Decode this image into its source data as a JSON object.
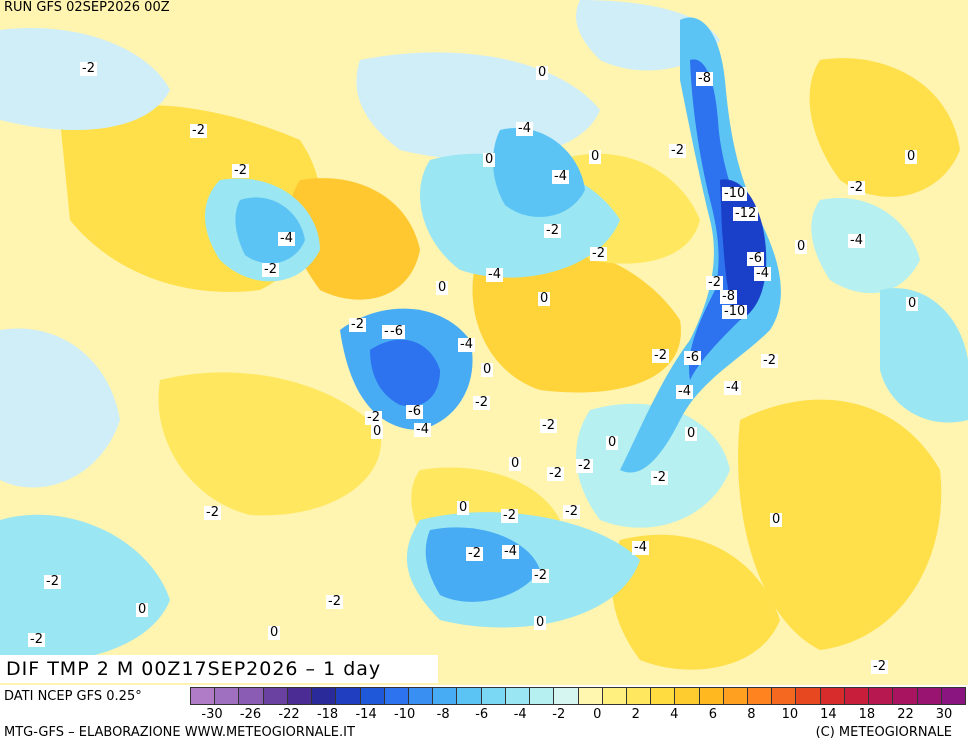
{
  "header": {
    "run": "RUN GFS 02SEP2026 00Z"
  },
  "map": {
    "field_title": "DIF TMP 2 M 00Z17SEP2026 – 1 day",
    "contour_labels": [
      "0",
      "-2",
      "-4",
      "-6",
      "-8",
      "-10",
      "-12",
      "0",
      "-2",
      "-4",
      "-2",
      "0",
      "-2",
      "-4",
      "-2",
      "0",
      "-2",
      "0",
      "-2",
      "-4",
      "-2",
      "0",
      "-2",
      "0",
      "-2",
      "-4",
      "-6",
      "-4",
      "0",
      "-2",
      "-6",
      "-4",
      "-2",
      "0",
      "-2",
      "0",
      "-2",
      "-4",
      "-2",
      "0",
      "-2",
      "-4",
      "-2",
      "0",
      "-2",
      "-4",
      "-6",
      "-8",
      "-10",
      "-6",
      "-4",
      "-2",
      "0",
      "-2",
      "-4",
      "-2",
      "0",
      "-2",
      "0",
      "-2",
      "-2",
      "0",
      "-2",
      "0",
      "-2",
      "0",
      "-2",
      "0"
    ],
    "colors": {
      "cold_deep": "#1a3fc8",
      "cold": "#3a7ae8",
      "cool": "#8fd6f2",
      "near_zero_cool": "#cfeef8",
      "near_zero_warm": "#fff4b0",
      "warm": "#ffe04a",
      "warmer": "#ffc830",
      "border": "#000000"
    }
  },
  "footer": {
    "data_source": "DATI NCEP GFS 0.25°",
    "credit_left": "MTG-GFS – ELABORAZIONE WWW.METEOGIORNALE.IT",
    "credit_right": "(C) METEOGIORNALE",
    "scale": {
      "colors": [
        "#b07cc8",
        "#a070c0",
        "#8a5cb4",
        "#6a40a0",
        "#4a2c94",
        "#2a2a9a",
        "#1f3fc0",
        "#1f58d8",
        "#2d72ee",
        "#3a90f2",
        "#48acf4",
        "#5cc4f4",
        "#7ad8f4",
        "#9ae6f2",
        "#b6f0f0",
        "#d6f6f2",
        "#fff6b0",
        "#fff080",
        "#ffe860",
        "#ffdc40",
        "#ffcc30",
        "#ffb820",
        "#ffa020",
        "#ff8420",
        "#f56820",
        "#e84820",
        "#d82c2c",
        "#c81e3c",
        "#b81850",
        "#a81460",
        "#981470",
        "#8a1480"
      ],
      "ticks": [
        "-30",
        "-26",
        "-22",
        "-18",
        "-14",
        "-10",
        "-8",
        "-6",
        "-4",
        "-2",
        "0",
        "2",
        "4",
        "6",
        "8",
        "10",
        "14",
        "18",
        "22",
        "30"
      ]
    }
  }
}
